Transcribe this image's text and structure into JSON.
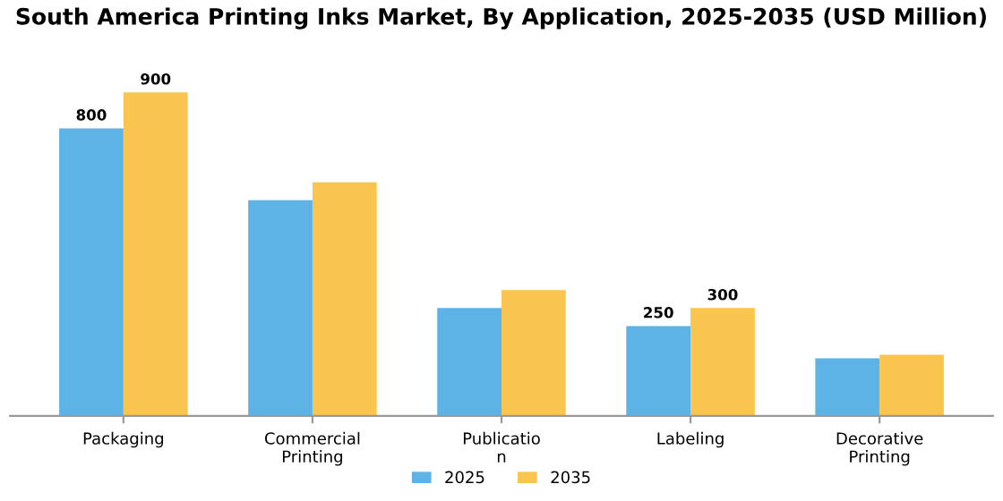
{
  "chart_data": {
    "type": "bar",
    "title": "South America Printing Inks Market, By Application, 2025-2035 (USD Million)",
    "categories": [
      "Packaging",
      "Commercial\nPrinting",
      "Publicatio\nn",
      "Labeling",
      "Decorative\nPrinting"
    ],
    "series": [
      {
        "name": "2025",
        "color": "#5DB3E6",
        "values": [
          800,
          600,
          300,
          250,
          160
        ],
        "value_labels": [
          "800",
          null,
          null,
          "250",
          null
        ]
      },
      {
        "name": "2035",
        "color": "#FAC54F",
        "values": [
          900,
          650,
          350,
          300,
          170
        ],
        "value_labels": [
          "900",
          null,
          null,
          "300",
          null
        ]
      }
    ],
    "legend": "bottom",
    "grid": false,
    "tick_labels": "x"
  }
}
